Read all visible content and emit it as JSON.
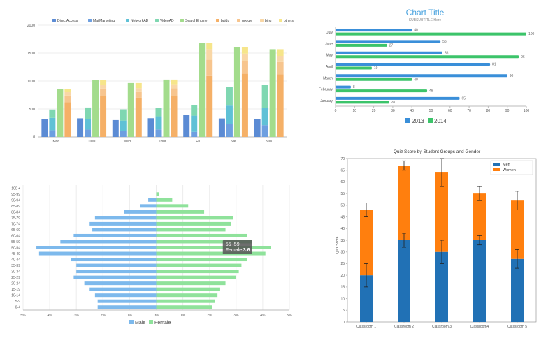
{
  "chart_data": [
    {
      "type": "bar",
      "stacked": "grouped-stacked",
      "legend": [
        "DirectAccess",
        "MailMarketing",
        "NetworkAD",
        "VideoAD",
        "SearchEngine",
        "baidu",
        "google",
        "bing",
        "others"
      ],
      "categories": [
        "Mon",
        "Tues",
        "Wed",
        "Thur",
        "Fri",
        "Sat",
        "Sun"
      ],
      "ylim": [
        0,
        2000
      ],
      "yticks": [
        "0",
        "500",
        "1000",
        "1500",
        "2000"
      ],
      "series": [
        {
          "name": "DirectAccess",
          "stack": "a",
          "color": "#5b8bd4",
          "values": [
            320,
            332,
            301,
            334,
            390,
            330,
            320
          ]
        },
        {
          "name": "MailMarketing",
          "stack": "b",
          "color": "#6d9fe0",
          "values": [
            120,
            132,
            101,
            134,
            90,
            230,
            210
          ]
        },
        {
          "name": "NetworkAD",
          "stack": "b",
          "color": "#5fc1d6",
          "values": [
            220,
            182,
            191,
            234,
            290,
            330,
            310
          ]
        },
        {
          "name": "VideoAD",
          "stack": "b",
          "color": "#7fd7b1",
          "values": [
            150,
            212,
            201,
            154,
            190,
            330,
            410
          ]
        },
        {
          "name": "SearchEngine",
          "stack": "c",
          "color": "#a3dc8c",
          "values": [
            862,
            1018,
            964,
            1026,
            1679,
            1600,
            1570
          ]
        },
        {
          "name": "baidu",
          "stack": "d",
          "color": "#f5b067",
          "values": [
            620,
            732,
            701,
            734,
            1090,
            1130,
            1120
          ]
        },
        {
          "name": "google",
          "stack": "d",
          "color": "#f7c58e",
          "values": [
            120,
            132,
            101,
            134,
            290,
            230,
            220
          ]
        },
        {
          "name": "bing",
          "stack": "d",
          "color": "#f9d7a6",
          "values": [
            60,
            72,
            71,
            74,
            190,
            130,
            110
          ]
        },
        {
          "name": "others",
          "stack": "d",
          "color": "#f6e58a",
          "values": [
            62,
            82,
            91,
            84,
            109,
            110,
            120
          ]
        }
      ]
    },
    {
      "type": "bar",
      "orientation": "horizontal",
      "title": "Chart Title",
      "subtitle": "SUBSUBTITLE Here",
      "categories": [
        "January",
        "February",
        "March",
        "April",
        "May",
        "June",
        "July"
      ],
      "xlim": [
        0,
        100
      ],
      "xticks": [
        "0",
        "10",
        "20",
        "30",
        "40",
        "50",
        "60",
        "70",
        "80",
        "90",
        "100"
      ],
      "legend_position": "bottom",
      "series": [
        {
          "name": "2013",
          "color": "#3a8fd9",
          "values": [
            65,
            8,
            90,
            81,
            56,
            55,
            40
          ]
        },
        {
          "name": "2014",
          "color": "#3cc46a",
          "values": [
            28,
            48,
            40,
            19,
            96,
            27,
            100
          ]
        }
      ]
    },
    {
      "type": "bar",
      "orientation": "horizontal",
      "subtype": "population-pyramid",
      "categories": [
        "0-4",
        "5-9",
        "10-14",
        "15-19",
        "20-24",
        "25-29",
        "30-34",
        "35-39",
        "40-44",
        "45-49",
        "50-54",
        "55-59",
        "60-64",
        "65-69",
        "70-74",
        "75-79",
        "80-84",
        "85-89",
        "90-94",
        "95-99",
        "100 +"
      ],
      "xticks": [
        "5%",
        "4%",
        "3%",
        "2%",
        "1%",
        "0%",
        "1%",
        "2%",
        "3%",
        "4%",
        "5%"
      ],
      "xlim": [
        -5,
        5
      ],
      "tooltip": {
        "title": "55 -59",
        "label": "Female:",
        "value": "3.6"
      },
      "series": [
        {
          "name": "Male",
          "color": "#7db9ec",
          "values": [
            2.2,
            2.2,
            2.3,
            2.5,
            2.7,
            3.1,
            3.0,
            3.0,
            3.2,
            4.4,
            4.5,
            3.6,
            3.1,
            2.4,
            2.5,
            2.3,
            1.2,
            0.6,
            0.3,
            0.0,
            0.0
          ]
        },
        {
          "name": "Female",
          "color": "#8fe29b",
          "values": [
            2.1,
            2.2,
            2.3,
            2.4,
            2.6,
            3.0,
            3.1,
            3.2,
            3.4,
            4.1,
            4.3,
            3.6,
            3.4,
            2.6,
            2.8,
            2.9,
            1.8,
            1.2,
            0.6,
            0.1,
            0.0
          ]
        }
      ]
    },
    {
      "type": "bar",
      "stacked": true,
      "title": "Quiz Score by Student Groups and Gender",
      "ylabel": "Quiz Score",
      "categories": [
        "Classroom 1",
        "Classroom 2",
        "Classroom 3",
        "Classroom4",
        "Classroom 5"
      ],
      "ylim": [
        0,
        70
      ],
      "yticks": [
        "0",
        "5",
        "10",
        "15",
        "20",
        "25",
        "30",
        "35",
        "40",
        "45",
        "50",
        "55",
        "60",
        "65",
        "70"
      ],
      "legend_position": "top-right",
      "series": [
        {
          "name": "Men",
          "color": "#2171b5",
          "values": [
            20,
            35,
            30,
            35,
            27
          ],
          "err": [
            5,
            3,
            5,
            2,
            4
          ]
        },
        {
          "name": "Women",
          "color": "#ff7f0e",
          "values": [
            28,
            32,
            34,
            20,
            25
          ],
          "err": [
            3,
            2,
            6,
            3,
            4
          ]
        }
      ]
    }
  ]
}
